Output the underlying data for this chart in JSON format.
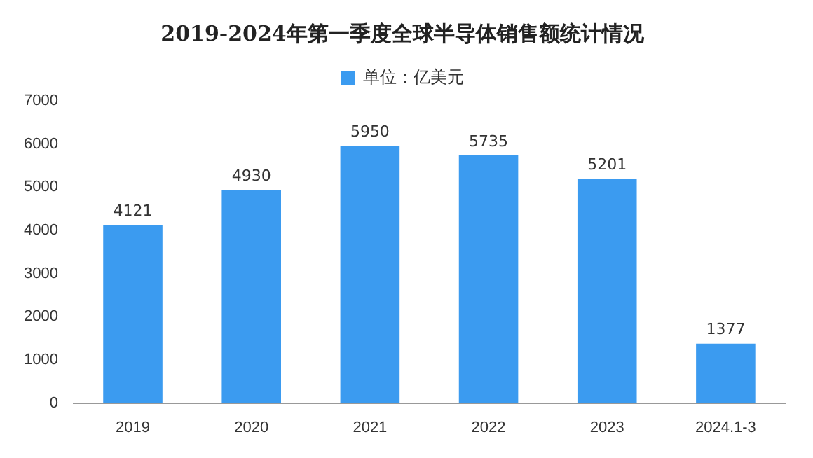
{
  "chart_data": {
    "type": "bar",
    "title": "2019-2024年第一季度全球半导体销售额统计情况",
    "categories": [
      "2019",
      "2020",
      "2021",
      "2022",
      "2023",
      "2024.1-3"
    ],
    "series": [
      {
        "name": "单位：亿美元",
        "color": "#3b9bf0",
        "values": [
          4121,
          4930,
          5950,
          5735,
          5201,
          1377
        ]
      }
    ],
    "ylim": [
      0,
      7000
    ],
    "yticks": [
      0,
      1000,
      2000,
      3000,
      4000,
      5000,
      6000,
      7000
    ],
    "grid": false,
    "legend": "top",
    "data_labels": true
  }
}
